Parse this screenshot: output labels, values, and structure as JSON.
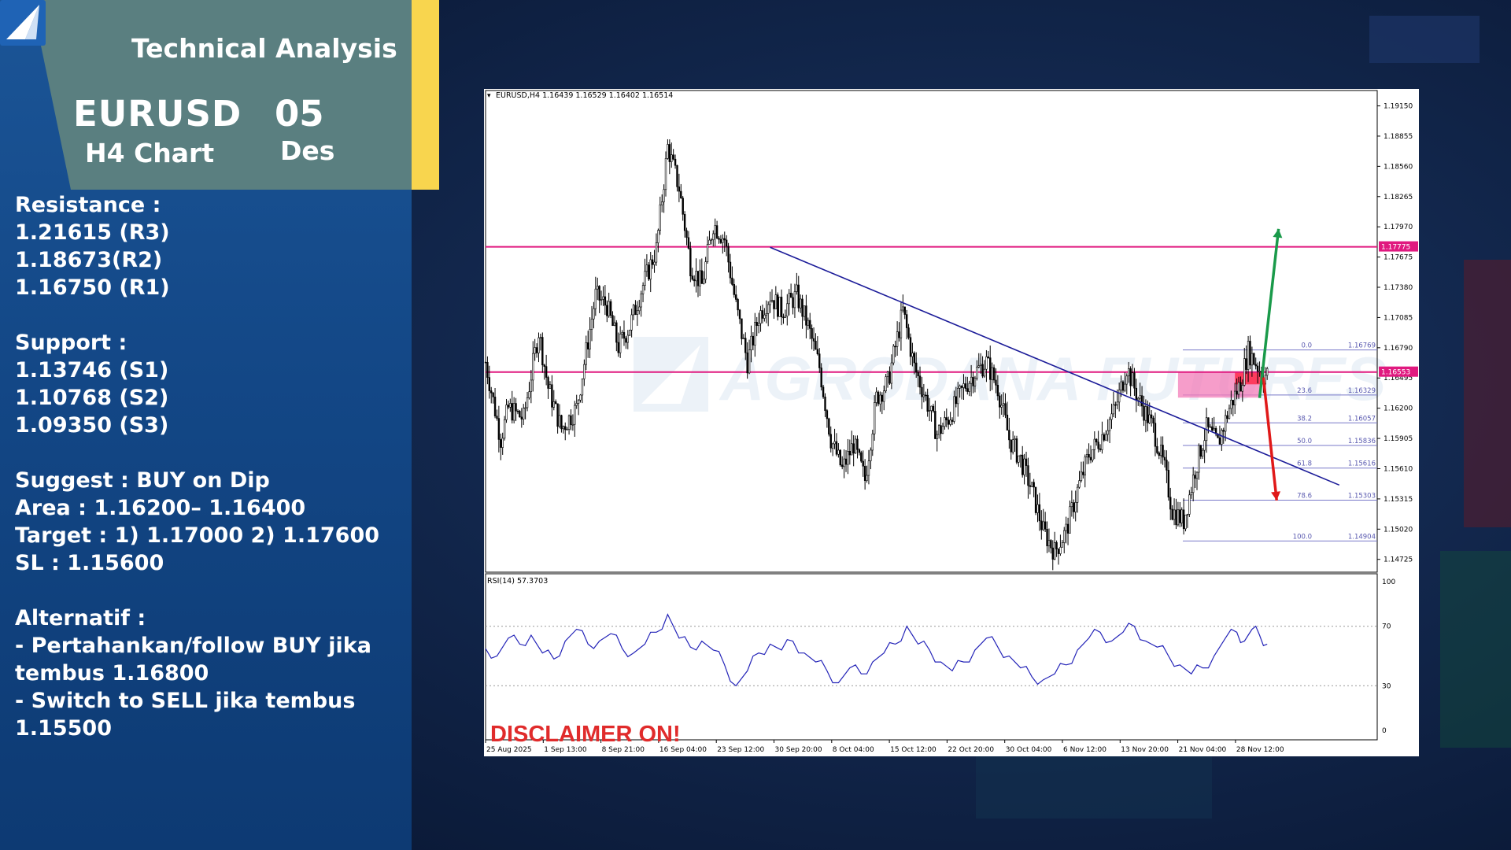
{
  "header": {
    "title": "Technical Analysis",
    "pair": "EURUSD",
    "timeframe": "H4 Chart",
    "day": "05",
    "month": "Des"
  },
  "levels": {
    "resistance_label": "Resistance :",
    "resistance": [
      "1.21615 (R3)",
      "1.18673(R2)",
      "1.16750 (R1)"
    ],
    "support_label": "Support :",
    "support": [
      "1.13746 (S1)",
      "1.10768  (S2)",
      "1.09350  (S3)"
    ]
  },
  "suggestion": {
    "suggest": "Suggest :  BUY on Dip",
    "area": "Area : 1.16200– 1.16400",
    "target": "Target : 1) 1.17000  2) 1.17600",
    "sl": "SL : 1.15600"
  },
  "alternative": {
    "label": "Alternatif :",
    "lines": [
      "- Pertahankan/follow BUY jika",
      "tembus 1.16800",
      "- Switch to SELL jika tembus",
      "1.15500"
    ]
  },
  "colors": {
    "panel_blue": "#1b5597",
    "header_teal": "#5a7f80",
    "accent_yellow": "#f8d54e",
    "resistance_line": "#e0197f",
    "trendline": "#1c1c99",
    "rsi_line": "#2424b8",
    "buy_arrow": "#1a9a4a",
    "sell_arrow": "#e01919",
    "disclaimer": "#e02b2b"
  },
  "chart_data": {
    "type": "candlestick",
    "title": "EURUSD,H4  1.16439 1.16529 1.16402 1.16514",
    "symbol": "EURUSD",
    "timeframe": "H4",
    "ohlc_last": {
      "open": 1.16439,
      "high": 1.16529,
      "low": 1.16402,
      "close": 1.16514
    },
    "ylim": [
      1.146,
      1.193
    ],
    "y_ticks": [
      "1.19150",
      "1.18855",
      "1.18560",
      "1.18265",
      "1.17970",
      "1.17675",
      "1.17380",
      "1.17085",
      "1.16790",
      "1.16495",
      "1.16200",
      "1.15905",
      "1.15610",
      "1.15315",
      "1.15020",
      "1.14725"
    ],
    "x_ticks": [
      "25 Aug 2025",
      "1 Sep 13:00",
      "8 Sep 21:00",
      "16 Sep 04:00",
      "23 Sep 12:00",
      "30 Sep 20:00",
      "8 Oct 04:00",
      "15 Oct 12:00",
      "22 Oct 20:00",
      "30 Oct 04:00",
      "6 Nov 12:00",
      "13 Nov 20:00",
      "21 Nov 04:00",
      "28 Nov 12:00"
    ],
    "price_path": [
      [
        0,
        1.1665
      ],
      [
        8,
        1.159
      ],
      [
        12,
        1.162
      ],
      [
        20,
        1.161
      ],
      [
        28,
        1.1695
      ],
      [
        33,
        1.164
      ],
      [
        40,
        1.16
      ],
      [
        48,
        1.162
      ],
      [
        58,
        1.173
      ],
      [
        64,
        1.172
      ],
      [
        70,
        1.168
      ],
      [
        76,
        1.17
      ],
      [
        82,
        1.1735
      ],
      [
        90,
        1.1775
      ],
      [
        96,
        1.1875
      ],
      [
        102,
        1.1835
      ],
      [
        108,
        1.176
      ],
      [
        114,
        1.174
      ],
      [
        120,
        1.18
      ],
      [
        126,
        1.1785
      ],
      [
        132,
        1.172
      ],
      [
        138,
        1.1665
      ],
      [
        144,
        1.171
      ],
      [
        150,
        1.173
      ],
      [
        156,
        1.1715
      ],
      [
        164,
        1.173
      ],
      [
        170,
        1.17
      ],
      [
        176,
        1.166
      ],
      [
        182,
        1.159
      ],
      [
        188,
        1.156
      ],
      [
        194,
        1.1585
      ],
      [
        200,
        1.155
      ],
      [
        206,
        1.163
      ],
      [
        212,
        1.1645
      ],
      [
        220,
        1.1715
      ],
      [
        226,
        1.166
      ],
      [
        232,
        1.163
      ],
      [
        238,
        1.1595
      ],
      [
        244,
        1.161
      ],
      [
        252,
        1.164
      ],
      [
        258,
        1.1655
      ],
      [
        264,
        1.1665
      ],
      [
        270,
        1.164
      ],
      [
        276,
        1.159
      ],
      [
        282,
        1.157
      ],
      [
        288,
        1.154
      ],
      [
        294,
        1.15
      ],
      [
        300,
        1.148
      ],
      [
        306,
        1.15
      ],
      [
        312,
        1.154
      ],
      [
        318,
        1.1575
      ],
      [
        324,
        1.159
      ],
      [
        332,
        1.162
      ],
      [
        338,
        1.166
      ],
      [
        344,
        1.163
      ],
      [
        352,
        1.16
      ],
      [
        358,
        1.156
      ],
      [
        362,
        1.152
      ],
      [
        368,
        1.151
      ],
      [
        374,
        1.156
      ],
      [
        380,
        1.16
      ],
      [
        386,
        1.1585
      ],
      [
        392,
        1.162
      ],
      [
        398,
        1.1645
      ],
      [
        402,
        1.1676
      ],
      [
        406,
        1.1664
      ],
      [
        410,
        1.1652
      ]
    ],
    "horizontal_levels": [
      {
        "price": 1.17775,
        "label": "1.17775"
      },
      {
        "price": 1.16553,
        "label": "1.16553"
      }
    ],
    "fibonacci": [
      {
        "level": "0.0",
        "price": "1.16769"
      },
      {
        "level": "23.6",
        "price": "1.16329"
      },
      {
        "level": "38.2",
        "price": "1.16057"
      },
      {
        "level": "50.0",
        "price": "1.15836"
      },
      {
        "level": "61.8",
        "price": "1.15616"
      },
      {
        "level": "78.6",
        "price": "1.15303"
      },
      {
        "level": "100.0",
        "price": "1.14904"
      }
    ],
    "trendline": {
      "from": [
        150,
        1.1777
      ],
      "to": [
        450,
        1.1545
      ]
    },
    "arrows": [
      {
        "direction": "up",
        "from": 1.163,
        "to": 1.1795,
        "color": "buy"
      },
      {
        "direction": "down",
        "from": 1.165,
        "to": 1.153,
        "color": "sell"
      }
    ],
    "rsi": {
      "label": "RSI(14) 57.3703",
      "ylim": [
        0,
        100
      ],
      "ticks": [
        "100",
        "70",
        "30",
        "0"
      ],
      "values": [
        [
          0,
          55
        ],
        [
          6,
          50
        ],
        [
          12,
          62
        ],
        [
          18,
          58
        ],
        [
          24,
          64
        ],
        [
          30,
          52
        ],
        [
          36,
          48
        ],
        [
          42,
          60
        ],
        [
          48,
          68
        ],
        [
          54,
          58
        ],
        [
          60,
          60
        ],
        [
          66,
          65
        ],
        [
          72,
          55
        ],
        [
          78,
          52
        ],
        [
          84,
          58
        ],
        [
          90,
          66
        ],
        [
          96,
          78
        ],
        [
          102,
          62
        ],
        [
          108,
          56
        ],
        [
          114,
          60
        ],
        [
          120,
          54
        ],
        [
          126,
          44
        ],
        [
          132,
          30
        ],
        [
          138,
          40
        ],
        [
          144,
          52
        ],
        [
          150,
          58
        ],
        [
          156,
          54
        ],
        [
          162,
          60
        ],
        [
          168,
          52
        ],
        [
          174,
          46
        ],
        [
          180,
          40
        ],
        [
          186,
          32
        ],
        [
          192,
          42
        ],
        [
          198,
          38
        ],
        [
          204,
          46
        ],
        [
          210,
          52
        ],
        [
          216,
          58
        ],
        [
          222,
          70
        ],
        [
          228,
          58
        ],
        [
          234,
          54
        ],
        [
          240,
          46
        ],
        [
          246,
          40
        ],
        [
          252,
          46
        ],
        [
          258,
          54
        ],
        [
          264,
          62
        ],
        [
          270,
          56
        ],
        [
          276,
          50
        ],
        [
          282,
          42
        ],
        [
          288,
          36
        ],
        [
          294,
          34
        ],
        [
          300,
          38
        ],
        [
          306,
          44
        ],
        [
          312,
          54
        ],
        [
          318,
          62
        ],
        [
          324,
          66
        ],
        [
          330,
          60
        ],
        [
          336,
          66
        ],
        [
          342,
          70
        ],
        [
          348,
          60
        ],
        [
          354,
          56
        ],
        [
          360,
          50
        ],
        [
          366,
          44
        ],
        [
          372,
          38
        ],
        [
          378,
          42
        ],
        [
          384,
          50
        ],
        [
          390,
          62
        ],
        [
          396,
          66
        ],
        [
          400,
          60
        ],
        [
          404,
          68
        ],
        [
          408,
          64
        ],
        [
          412,
          58
        ]
      ]
    },
    "watermark": "AGRODANA FUTURES",
    "annotation": "DISCLAIMER ON!"
  }
}
